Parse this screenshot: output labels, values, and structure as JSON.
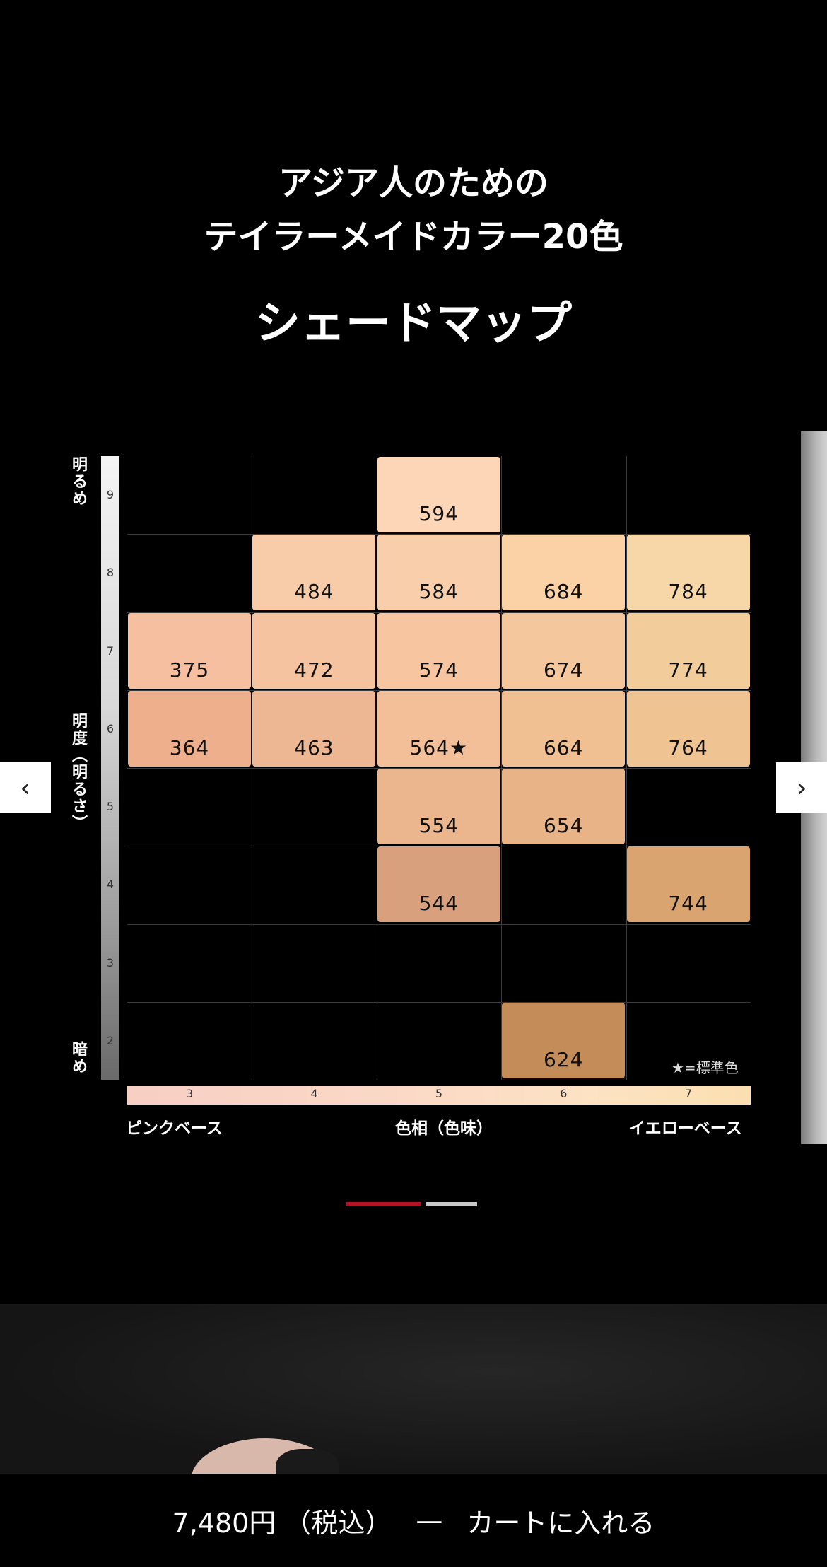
{
  "header": {
    "line1": "アジア人のための",
    "line2": "テイラーメイドカラー20色",
    "heading": "シェードマップ"
  },
  "shade_map": {
    "y_axis": {
      "label": "明度（明るさ）",
      "top_label": "明るめ",
      "bottom_label": "暗め",
      "levels": [
        "9",
        "8",
        "7",
        "6",
        "5",
        "4",
        "3",
        "2"
      ]
    },
    "x_axis": {
      "label": "色相（色味）",
      "left_label": "ピンクベース",
      "right_label": "イエローベース",
      "hues": [
        "3",
        "4",
        "5",
        "6",
        "7"
      ]
    },
    "legend": "★=標準色",
    "shades": [
      {
        "code": "594",
        "hue": 5,
        "level": 9,
        "color": "#fcd6b6"
      },
      {
        "code": "484",
        "hue": 4,
        "level": 8,
        "color": "#f8cca8"
      },
      {
        "code": "584",
        "hue": 5,
        "level": 8,
        "color": "#f9cfab"
      },
      {
        "code": "684",
        "hue": 6,
        "level": 8,
        "color": "#fad2a5"
      },
      {
        "code": "784",
        "hue": 7,
        "level": 8,
        "color": "#f7d7a8"
      },
      {
        "code": "375",
        "hue": 3,
        "level": 7,
        "color": "#f6bfa0"
      },
      {
        "code": "472",
        "hue": 4,
        "level": 7,
        "color": "#f5c39f"
      },
      {
        "code": "574",
        "hue": 5,
        "level": 7,
        "color": "#f7c6a0"
      },
      {
        "code": "674",
        "hue": 6,
        "level": 7,
        "color": "#f5c79c"
      },
      {
        "code": "774",
        "hue": 7,
        "level": 7,
        "color": "#f2cd9b"
      },
      {
        "code": "364",
        "hue": 3,
        "level": 6,
        "color": "#eeaf8d"
      },
      {
        "code": "463",
        "hue": 4,
        "level": 6,
        "color": "#edb793"
      },
      {
        "code": "564★",
        "hue": 5,
        "level": 6,
        "color": "#f2bf98"
      },
      {
        "code": "664",
        "hue": 6,
        "level": 6,
        "color": "#f0bf92"
      },
      {
        "code": "764",
        "hue": 7,
        "level": 6,
        "color": "#efc392"
      },
      {
        "code": "554",
        "hue": 5,
        "level": 5,
        "color": "#ebb58d"
      },
      {
        "code": "654",
        "hue": 6,
        "level": 5,
        "color": "#e8b487"
      },
      {
        "code": "544",
        "hue": 5,
        "level": 4,
        "color": "#d8a07c"
      },
      {
        "code": "744",
        "hue": 7,
        "level": 4,
        "color": "#d9a470"
      },
      {
        "code": "624",
        "hue": 6,
        "level": 2,
        "color": "#c38c58"
      }
    ]
  },
  "carousel": {
    "prev_icon": "chevron-left-icon",
    "next_icon": "chevron-right-icon",
    "slides_total": 2,
    "active_slide": 1,
    "active_color": "#b01325"
  },
  "cart_bar": {
    "price": "7,480円 （税込）",
    "separator": "—",
    "action": "カートに入れる"
  }
}
